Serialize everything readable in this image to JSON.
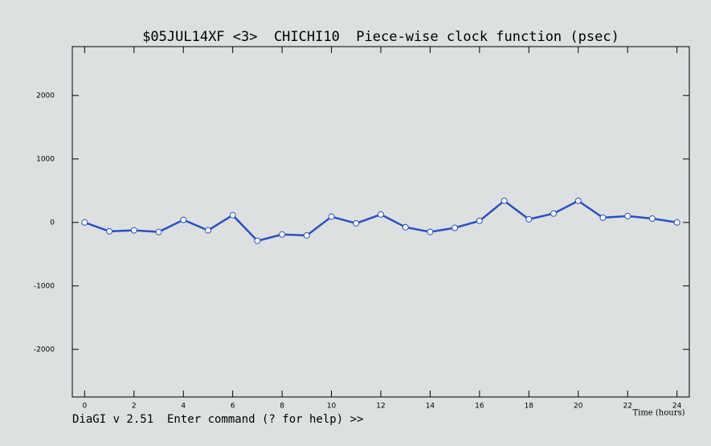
{
  "chart_data": {
    "type": "line",
    "title": "$05JUL14XF <3>  CHICHI10  Piece-wise clock function (psec)",
    "x_label": "Time (hours)",
    "x": [
      0,
      1,
      2,
      3,
      4,
      5,
      6,
      7,
      8,
      9,
      10,
      11,
      12,
      13,
      14,
      15,
      16,
      17,
      18,
      19,
      20,
      21,
      22,
      23,
      24
    ],
    "series": [
      {
        "color": "#2a50c0",
        "values": [
          0,
          -140,
          -125,
          -150,
          40,
          -125,
          115,
          -290,
          -190,
          -205,
          90,
          -15,
          125,
          -75,
          -150,
          -85,
          25,
          340,
          50,
          140,
          340,
          75,
          100,
          60,
          0
        ]
      }
    ],
    "xlim": [
      -0.5,
      24.5
    ],
    "xticks": [
      0,
      2,
      4,
      6,
      8,
      10,
      12,
      14,
      16,
      18,
      20,
      22,
      24
    ],
    "ylim": [
      -2750,
      2770
    ],
    "yticks": [
      -2000,
      -1000,
      0,
      1000,
      2000
    ]
  },
  "status_line": "DiaGI v 2.51  Enter command (? for help) >>"
}
